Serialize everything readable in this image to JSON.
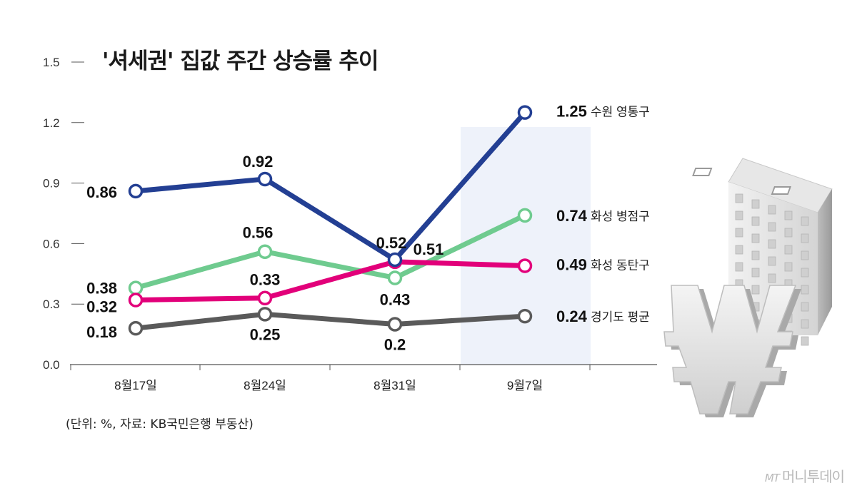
{
  "title": "'셔세권' 집값 주간 상승률 추이",
  "source_note": "(단위: %, 자료: KB국민은행 부동산)",
  "brand": {
    "mark": "MT",
    "name": "머니투데이"
  },
  "colors": {
    "suwon": "#233f93",
    "byeongjeom": "#6fcb8f",
    "dongtan": "#e2007a",
    "gyeonggi": "#5a5a5a",
    "highlight": "#eef2fa",
    "axis": "#555555"
  },
  "chart_data": {
    "type": "line",
    "title": "'셔세권' 집값 주간 상승률 추이",
    "categories": [
      "8월17일",
      "8월24일",
      "8월31일",
      "9월7일"
    ],
    "yticks": [
      "0.0",
      "0.3",
      "0.6",
      "0.9",
      "1.2",
      "1.5"
    ],
    "ylim": [
      0,
      1.5
    ],
    "unit": "%",
    "grid": false,
    "highlighted_category": "9월7일",
    "series": [
      {
        "name": "수원 영통구",
        "color": "#233f93",
        "values": [
          0.86,
          0.92,
          0.52,
          1.25
        ],
        "labels": [
          "0.86",
          "0.92",
          "0.52",
          "1.25"
        ]
      },
      {
        "name": "화성 병점구",
        "color": "#6fcb8f",
        "values": [
          0.38,
          0.56,
          0.43,
          0.74
        ],
        "labels": [
          "0.38",
          "0.56",
          "0.43",
          "0.74"
        ]
      },
      {
        "name": "화성 동탄구",
        "color": "#e2007a",
        "values": [
          0.32,
          0.33,
          0.51,
          0.49
        ],
        "labels": [
          "0.32",
          "0.33",
          "0.51",
          "0.49"
        ]
      },
      {
        "name": "경기도 평균",
        "color": "#5a5a5a",
        "values": [
          0.18,
          0.25,
          0.2,
          0.24
        ],
        "labels": [
          "0.18",
          "0.25",
          "0.2",
          "0.24"
        ]
      }
    ]
  }
}
